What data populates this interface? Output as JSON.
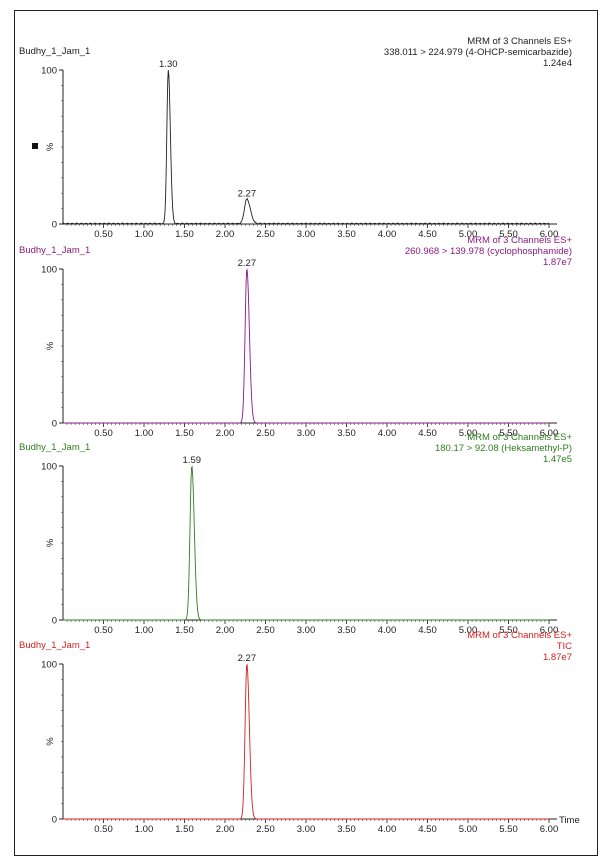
{
  "chart_data": [
    {
      "type": "line",
      "sample": "Budhy_1_Jam_1",
      "header": [
        "MRM of 3 Channels ES+",
        "338.011 > 224.979 (4-OHCP-semicarbazide)",
        "1.24e4"
      ],
      "color": "#222222",
      "ylabel": "%",
      "y_ticks": [
        "0",
        "100"
      ],
      "xlim": [
        0,
        6.0
      ],
      "ylim": [
        0,
        100
      ],
      "x_ticks": [
        "0.50",
        "1.00",
        "1.50",
        "2.00",
        "2.50",
        "3.00",
        "3.50",
        "4.00",
        "4.50",
        "5.00",
        "5.50",
        "6.00"
      ],
      "peaks": [
        {
          "label": "1.30",
          "rt": 1.3,
          "height": 100,
          "width": 0.018
        },
        {
          "label": "2.27",
          "rt": 2.27,
          "height": 16,
          "width": 0.03
        }
      ]
    },
    {
      "type": "line",
      "sample": "Budhy_1_Jam_1",
      "header": [
        "MRM of 3 Channels ES+",
        "260.968 > 139.978 (cyclophosphamide)",
        "1.87e7"
      ],
      "color": "#8a1a7e",
      "ylabel": "%",
      "y_ticks": [
        "0",
        "100"
      ],
      "xlim": [
        0,
        6.0
      ],
      "ylim": [
        0,
        100
      ],
      "x_ticks": [
        "0.50",
        "1.00",
        "1.50",
        "2.00",
        "2.50",
        "3.00",
        "3.50",
        "4.00",
        "4.50",
        "5.00",
        "5.50",
        "6.00"
      ],
      "peaks": [
        {
          "label": "2.27",
          "rt": 2.27,
          "height": 100,
          "width": 0.022
        }
      ]
    },
    {
      "type": "line",
      "sample": "Budhy_1_Jam_1",
      "header": [
        "MRM of 3 Channels ES+",
        "180.17 > 92.08 (Heksamethyl-P)",
        "1.47e5"
      ],
      "color": "#2e7d1e",
      "ylabel": "%",
      "y_ticks": [
        "0",
        "100"
      ],
      "xlim": [
        0,
        6.0
      ],
      "ylim": [
        0,
        100
      ],
      "x_ticks": [
        "0.50",
        "1.00",
        "1.50",
        "2.00",
        "2.50",
        "3.00",
        "3.50",
        "4.00",
        "4.50",
        "5.00",
        "5.50",
        "6.00"
      ],
      "peaks": [
        {
          "label": "1.59",
          "rt": 1.59,
          "height": 100,
          "width": 0.022
        }
      ]
    },
    {
      "type": "line",
      "sample": "Budhy_1_Jam_1",
      "header": [
        "MRM of 3 Channels ES+",
        "TIC",
        "1.87e7"
      ],
      "color": "#d42020",
      "ylabel": "%",
      "y_ticks": [
        "0",
        "100"
      ],
      "xlim": [
        0,
        6.0
      ],
      "ylim": [
        0,
        100
      ],
      "x_ticks": [
        "0.50",
        "1.00",
        "1.50",
        "2.00",
        "2.50",
        "3.00",
        "3.50",
        "4.00",
        "4.50",
        "5.00",
        "5.50",
        "6.00"
      ],
      "xlabel": "Time",
      "peaks": [
        {
          "label": "2.27",
          "rt": 2.27,
          "height": 100,
          "width": 0.022
        }
      ]
    }
  ],
  "colors": {
    "axis": "#222222",
    "tick": "#333333"
  },
  "marker_icon": "square-marker-icon"
}
